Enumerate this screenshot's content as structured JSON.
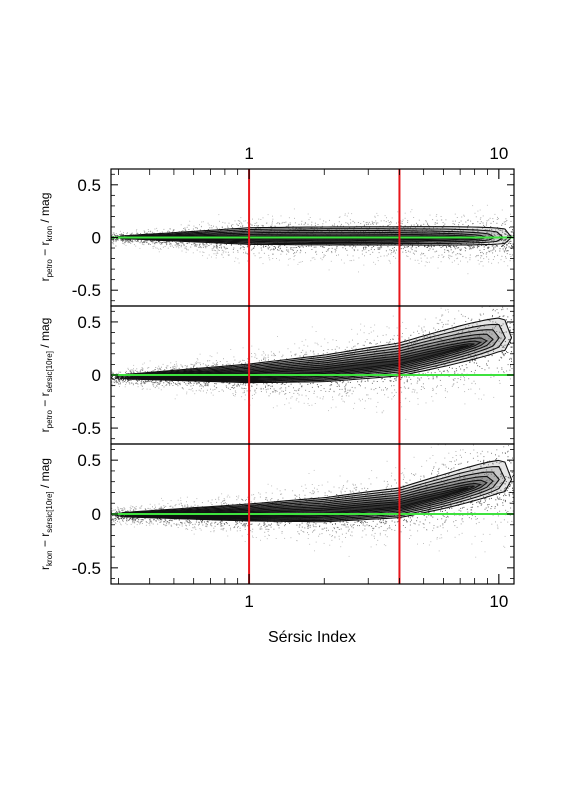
{
  "chart_data": {
    "type": "scatter",
    "description_scale": "log-x",
    "xlabel": "Sérsic Index",
    "xlim": [
      0.28,
      11.5
    ],
    "x_ticks": [
      {
        "value": 1,
        "label": "1"
      },
      {
        "value": 10,
        "label": "10"
      }
    ],
    "x_top_ticks": [
      {
        "value": 1,
        "label": "1"
      },
      {
        "value": 10,
        "label": "10"
      }
    ],
    "vertical_lines": [
      {
        "x": 1,
        "color": "#e8151b"
      },
      {
        "x": 4,
        "color": "#e8151b"
      }
    ],
    "panels": [
      {
        "ylim": [
          -0.65,
          0.65
        ],
        "y_ticks": [
          {
            "value": 0.5,
            "label": "0.5"
          },
          {
            "value": 0,
            "label": "0"
          },
          {
            "value": -0.5,
            "label": "-0.5"
          }
        ],
        "ylabel": {
          "main1": "r",
          "sub1": "petro",
          "main2": " − r",
          "sub2": "kron",
          "tail": " / mag"
        },
        "reference_line": {
          "y": 0,
          "color": "#3ee23e"
        },
        "ridge": [
          [
            0.3,
            0.0
          ],
          [
            1,
            0.0
          ],
          [
            4,
            0.0
          ],
          [
            11,
            0.0
          ]
        ],
        "spread": [
          [
            0.3,
            0.02
          ],
          [
            1,
            0.09
          ],
          [
            4,
            0.1
          ],
          [
            11,
            0.12
          ]
        ],
        "contour_levels": 6
      },
      {
        "ylim": [
          -0.65,
          0.65
        ],
        "y_ticks": [
          {
            "value": 0.5,
            "label": "0.5"
          },
          {
            "value": 0,
            "label": "0"
          },
          {
            "value": -0.5,
            "label": "-0.5"
          }
        ],
        "ylabel": {
          "main1": "r",
          "sub1": "petro",
          "main2": " − r",
          "sub2": "sérsic[10re]",
          "tail": " / mag"
        },
        "reference_line": {
          "y": 0,
          "color": "#3ee23e"
        },
        "ridge": [
          [
            0.3,
            -0.02
          ],
          [
            1,
            0.0
          ],
          [
            2,
            0.04
          ],
          [
            4,
            0.12
          ],
          [
            6,
            0.22
          ],
          [
            10,
            0.35
          ]
        ],
        "spread": [
          [
            0.3,
            0.03
          ],
          [
            1,
            0.1
          ],
          [
            4,
            0.18
          ],
          [
            10,
            0.25
          ]
        ],
        "contour_levels": 8
      },
      {
        "ylim": [
          -0.65,
          0.65
        ],
        "y_ticks": [
          {
            "value": 0.5,
            "label": "0.5"
          },
          {
            "value": 0,
            "label": "0"
          },
          {
            "value": -0.5,
            "label": "-0.5"
          }
        ],
        "ylabel": {
          "main1": "r",
          "sub1": "kron",
          "main2": " − r",
          "sub2": "sérsic[10re]",
          "tail": " / mag"
        },
        "reference_line": {
          "y": 0,
          "color": "#3ee23e"
        },
        "ridge": [
          [
            0.3,
            -0.01
          ],
          [
            1,
            0.0
          ],
          [
            2,
            0.02
          ],
          [
            4,
            0.08
          ],
          [
            6,
            0.18
          ],
          [
            10,
            0.32
          ]
        ],
        "spread": [
          [
            0.3,
            0.03
          ],
          [
            1,
            0.09
          ],
          [
            4,
            0.16
          ],
          [
            10,
            0.24
          ]
        ],
        "contour_levels": 8
      }
    ]
  }
}
